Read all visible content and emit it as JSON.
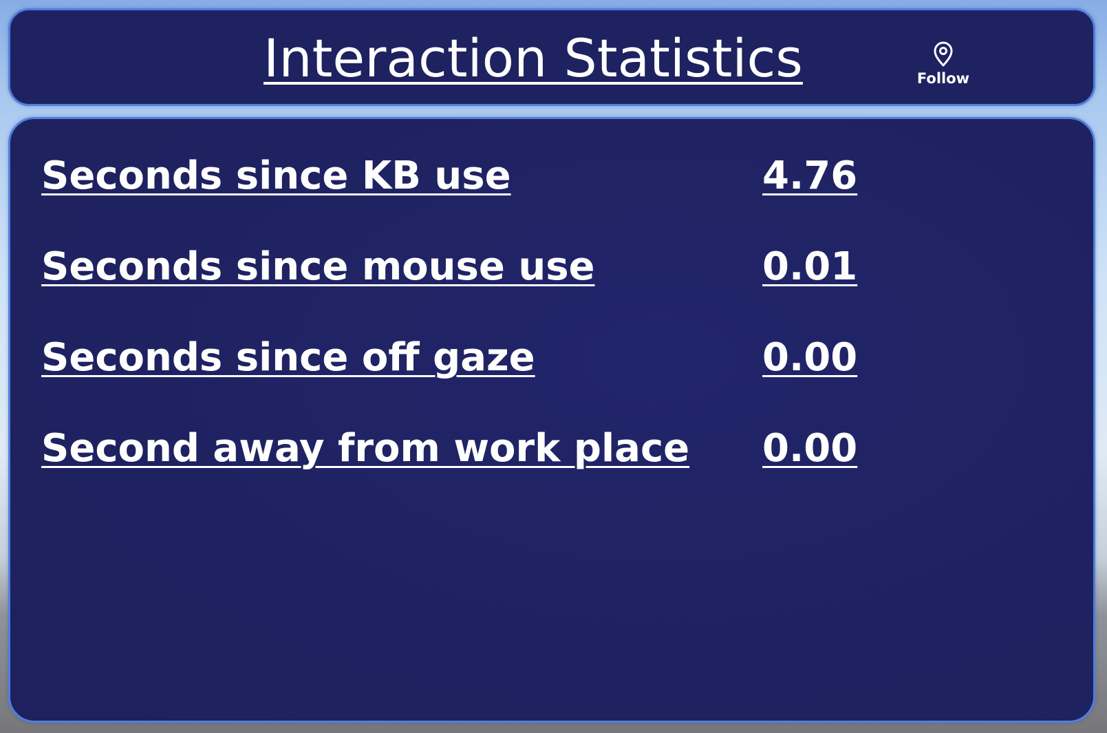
{
  "header": {
    "title": "Interaction Statistics",
    "follow_label": "Follow",
    "follow_icon": "location-pin-icon"
  },
  "stats": [
    {
      "label": "Seconds since KB use",
      "value": "4.76"
    },
    {
      "label": "Seconds since mouse use",
      "value": "0.01"
    },
    {
      "label": "Seconds since off gaze",
      "value": "0.00"
    },
    {
      "label": "Second away from work place",
      "value": "0.00"
    }
  ],
  "colors": {
    "panel_background": "#1f2260",
    "panel_border": "#4f7fe0",
    "text": "#ffffff"
  }
}
